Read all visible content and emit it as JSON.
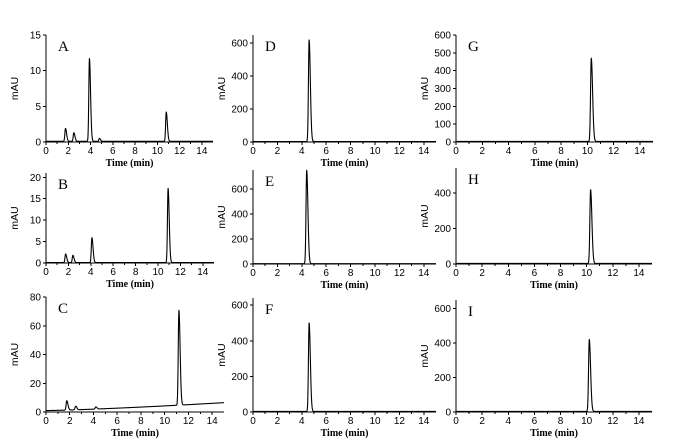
{
  "chart_data": [
    {
      "type": "line",
      "panel_label": "A",
      "xlabel": "Time (min)",
      "ylabel": "mAU",
      "xlim": [
        0,
        15
      ],
      "ylim": [
        0,
        15
      ],
      "xticks": [
        0,
        2,
        4,
        6,
        8,
        10,
        12,
        14
      ],
      "yticks": [
        0,
        5,
        10,
        15
      ],
      "baseline": 0.1,
      "peaks": [
        {
          "rt": 1.75,
          "height": 1.8
        },
        {
          "rt": 2.5,
          "height": 1.2
        },
        {
          "rt": 3.9,
          "height": 11.6
        },
        {
          "rt": 4.8,
          "height": 0.4
        },
        {
          "rt": 10.8,
          "height": 4.1
        }
      ]
    },
    {
      "type": "line",
      "panel_label": "B",
      "xlabel": "Time (min)",
      "ylabel": "mAU",
      "xlim": [
        0,
        15
      ],
      "ylim": [
        0,
        21
      ],
      "xticks": [
        0,
        2,
        4,
        6,
        8,
        10,
        12,
        14
      ],
      "yticks": [
        0,
        5,
        10,
        15,
        20
      ],
      "baseline": 0.1,
      "peaks": [
        {
          "rt": 1.75,
          "height": 2.0
        },
        {
          "rt": 2.4,
          "height": 1.7
        },
        {
          "rt": 4.1,
          "height": 5.8
        },
        {
          "rt": 10.9,
          "height": 17.3
        }
      ]
    },
    {
      "type": "line",
      "panel_label": "C",
      "xlabel": "Time (min)",
      "ylabel": "mAU",
      "xlim": [
        0,
        15
      ],
      "ylim": [
        0,
        80
      ],
      "xticks": [
        0,
        2,
        4,
        6,
        8,
        10,
        12,
        14
      ],
      "yticks": [
        0,
        20,
        40,
        60,
        80
      ],
      "baseline": 1.0,
      "drift_end": 6.5,
      "peaks": [
        {
          "rt": 1.75,
          "height": 6.5
        },
        {
          "rt": 2.5,
          "height": 2.5
        },
        {
          "rt": 4.2,
          "height": 1.5
        },
        {
          "rt": 11.2,
          "height": 66.0
        }
      ]
    },
    {
      "type": "line",
      "panel_label": "D",
      "xlabel": "Time (min)",
      "ylabel": "mAU",
      "xlim": [
        0,
        15
      ],
      "ylim": [
        0,
        650
      ],
      "xticks": [
        0,
        2,
        4,
        6,
        8,
        10,
        12,
        14
      ],
      "yticks": [
        0,
        200,
        400,
        600
      ],
      "baseline": 3,
      "peaks": [
        {
          "rt": 4.6,
          "height": 617
        }
      ]
    },
    {
      "type": "line",
      "panel_label": "E",
      "xlabel": "Time (min)",
      "ylabel": "mAU",
      "xlim": [
        0,
        15
      ],
      "ylim": [
        0,
        750
      ],
      "xticks": [
        0,
        2,
        4,
        6,
        8,
        10,
        12,
        14
      ],
      "yticks": [
        0,
        200,
        400,
        600
      ],
      "baseline": 3,
      "peaks": [
        {
          "rt": 4.4,
          "height": 745
        }
      ]
    },
    {
      "type": "line",
      "panel_label": "F",
      "xlabel": "Time (min)",
      "ylabel": "mAU",
      "xlim": [
        0,
        15
      ],
      "ylim": [
        0,
        640
      ],
      "xticks": [
        0,
        2,
        4,
        6,
        8,
        10,
        12,
        14
      ],
      "yticks": [
        0,
        200,
        400,
        600
      ],
      "baseline": 3,
      "peaks": [
        {
          "rt": 4.6,
          "height": 497
        }
      ]
    },
    {
      "type": "line",
      "panel_label": "G",
      "xlabel": "Time (min)",
      "ylabel": "mAU",
      "xlim": [
        0,
        15
      ],
      "ylim": [
        0,
        600
      ],
      "xticks": [
        0,
        2,
        4,
        6,
        8,
        10,
        12,
        14
      ],
      "yticks": [
        0,
        100,
        200,
        300,
        400,
        500,
        600
      ],
      "baseline": 3,
      "peaks": [
        {
          "rt": 10.3,
          "height": 467
        }
      ]
    },
    {
      "type": "line",
      "panel_label": "H",
      "xlabel": "Time (min)",
      "ylabel": "mAU",
      "xlim": [
        0,
        15
      ],
      "ylim": [
        0,
        540
      ],
      "xticks": [
        0,
        2,
        4,
        6,
        8,
        10,
        12,
        14
      ],
      "yticks": [
        0,
        200,
        400
      ],
      "baseline": 3,
      "peaks": [
        {
          "rt": 10.3,
          "height": 415
        }
      ]
    },
    {
      "type": "line",
      "panel_label": "I",
      "xlabel": "Time (min)",
      "ylabel": "mAU",
      "xlim": [
        0,
        15
      ],
      "ylim": [
        0,
        650
      ],
      "xticks": [
        0,
        2,
        4,
        6,
        8,
        10,
        12,
        14
      ],
      "yticks": [
        0,
        200,
        400,
        600
      ],
      "baseline": 3,
      "peaks": [
        {
          "rt": 10.2,
          "height": 418
        }
      ]
    }
  ]
}
